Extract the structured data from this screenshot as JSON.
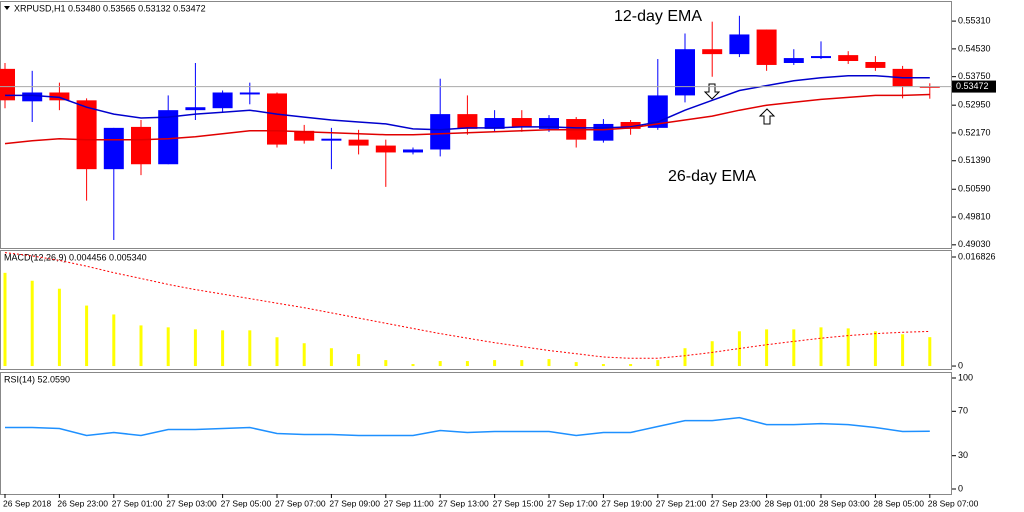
{
  "chart_data": [
    {
      "type": "candlestick",
      "title": "XRPUSD,H1  0.53480 0.53565 0.53132 0.53472",
      "categories": [
        "26 Sep 2018",
        null,
        "26 Sep 23:00",
        null,
        "27 Sep 01:00",
        null,
        "27 Sep 03:00",
        null,
        "27 Sep 05:00",
        null,
        "27 Sep 07:00",
        null,
        "27 Sep 09:00",
        null,
        "27 Sep 11:00",
        null,
        "27 Sep 13:00",
        null,
        "27 Sep 15:00",
        null,
        "27 Sep 17:00",
        null,
        "27 Sep 19:00",
        null,
        "27 Sep 21:00",
        null,
        "27 Sep 23:00",
        null,
        "28 Sep 01:00",
        null,
        "28 Sep 03:00",
        null,
        "28 Sep 05:00",
        null,
        "28 Sep 07:00"
      ],
      "open": [
        0.53969,
        0.53058,
        0.53306,
        0.53086,
        0.51154,
        0.5234,
        0.51292,
        0.5281,
        0.52865,
        0.53251,
        0.53279,
        0.5223,
        0.51954,
        0.51982,
        0.51816,
        0.51623,
        0.51706,
        0.52699,
        0.52285,
        0.52589,
        0.52285,
        0.52561,
        0.51954,
        0.52478,
        0.52313,
        0.53224,
        0.54521,
        0.54383,
        0.55073,
        0.54134,
        0.54272,
        0.54355,
        0.54162,
        0.53969,
        0.5348
      ],
      "high": [
        0.54134,
        0.53914,
        0.53582,
        0.53141,
        0.52313,
        0.52534,
        0.53224,
        0.54134,
        0.53362,
        0.53582,
        0.53306,
        0.52396,
        0.52313,
        0.52258,
        0.51982,
        0.51761,
        0.53693,
        0.53224,
        0.5281,
        0.5281,
        0.52672,
        0.52616,
        0.52561,
        0.52534,
        0.54245,
        0.54962,
        0.55294,
        0.55459,
        0.55073,
        0.54521,
        0.54742,
        0.54466,
        0.54328,
        0.54052,
        0.53565
      ],
      "low": [
        0.52865,
        0.52478,
        0.5281,
        0.5027,
        0.49166,
        0.50988,
        0.51292,
        0.52534,
        0.52754,
        0.52975,
        0.51761,
        0.51871,
        0.51154,
        0.51568,
        0.50657,
        0.51568,
        0.51512,
        0.5212,
        0.52202,
        0.52202,
        0.52202,
        0.51761,
        0.51899,
        0.5212,
        0.52258,
        0.5303,
        0.53748,
        0.543,
        0.53914,
        0.54079,
        0.54245,
        0.54107,
        0.53914,
        0.53141,
        0.53132
      ],
      "close": [
        0.53086,
        0.53306,
        0.53086,
        0.51154,
        0.52313,
        0.51292,
        0.5281,
        0.52892,
        0.53306,
        0.53306,
        0.51844,
        0.51954,
        0.52009,
        0.51816,
        0.51623,
        0.51706,
        0.52699,
        0.52285,
        0.52589,
        0.5234,
        0.52589,
        0.51982,
        0.52423,
        0.52285,
        0.53224,
        0.54521,
        0.54383,
        0.54935,
        0.54079,
        0.54272,
        0.54328,
        0.5419,
        0.53996,
        0.5348,
        0.53472
      ],
      "up_color": "#0000ff",
      "down_color": "#ff0000",
      "series": [
        {
          "name": "12-day EMA",
          "color": "#0000cd",
          "values": [
            0.53224,
            0.53224,
            0.53168,
            0.52892,
            0.52699,
            0.52589,
            0.52616,
            0.52699,
            0.52754,
            0.5281,
            0.52699,
            0.52616,
            0.52534,
            0.52478,
            0.52423,
            0.52285,
            0.52258,
            0.52313,
            0.52313,
            0.5234,
            0.5234,
            0.52313,
            0.52313,
            0.5234,
            0.52478,
            0.5281,
            0.53086,
            0.53362,
            0.535,
            0.53638,
            0.5372,
            0.53776,
            0.53776,
            0.5372,
            0.5372
          ]
        },
        {
          "name": "26-day EMA",
          "color": "#e00000",
          "values": [
            0.51871,
            0.51954,
            0.52009,
            0.51982,
            0.51982,
            0.51982,
            0.52009,
            0.52064,
            0.52147,
            0.5223,
            0.5223,
            0.52202,
            0.52175,
            0.52147,
            0.5212,
            0.5212,
            0.52147,
            0.52175,
            0.52202,
            0.5223,
            0.52258,
            0.52258,
            0.52258,
            0.52313,
            0.52423,
            0.52534,
            0.52644,
            0.5281,
            0.52948,
            0.5303,
            0.53113,
            0.53168,
            0.53224,
            0.53224,
            0.53251
          ]
        }
      ],
      "last_price": 0.53472,
      "ylim": [
        0.48941,
        0.55846
      ],
      "yticks": [
        {
          "value": 0.5531,
          "label": "0.55310"
        },
        {
          "value": 0.5453,
          "label": "0.54530"
        },
        {
          "value": 0.5375,
          "label": "0.53750"
        },
        {
          "value": 0.5295,
          "label": "0.52950"
        },
        {
          "value": 0.5217,
          "label": "0.52170"
        },
        {
          "value": 0.5139,
          "label": "0.51390"
        },
        {
          "value": 0.5059,
          "label": "0.50590"
        },
        {
          "value": 0.4981,
          "label": "0.49810"
        },
        {
          "value": 0.4903,
          "label": "0.49030"
        }
      ]
    },
    {
      "type": "bar",
      "title": "MACD(12,26,9) 0.004456 0.005340",
      "series": [
        {
          "type": "bar",
          "color": "#ffff00",
          "values": [
            0.01438,
            0.01316,
            0.01193,
            0.00933,
            0.00796,
            0.00627,
            0.00597,
            0.00566,
            0.00551,
            0.00551,
            0.00444,
            0.00352,
            0.00275,
            0.00184,
            0.00092,
            0.00031,
            0.00077,
            0.00077,
            0.00092,
            0.00092,
            0.00107,
            0.00061,
            0.00031,
            0.00031,
            0.00092,
            0.00275,
            0.00383,
            0.00536,
            0.00566,
            0.00566,
            0.00597,
            0.00581,
            0.00536,
            0.0049,
            0.004456
          ]
        },
        {
          "type": "line",
          "color": "#ff0000",
          "dash": true,
          "values": [
            0.0175,
            0.017,
            0.0163,
            0.0154,
            0.0144,
            0.0135,
            0.0126,
            0.0118,
            0.0111,
            0.0104,
            0.0097,
            0.009,
            0.0082,
            0.0074,
            0.0066,
            0.0058,
            0.005,
            0.0043,
            0.0036,
            0.003,
            0.0024,
            0.0019,
            0.0014,
            0.0012,
            0.0012,
            0.0016,
            0.0021,
            0.0027,
            0.0033,
            0.0038,
            0.0043,
            0.0047,
            0.005,
            0.0052,
            0.00534
          ]
        }
      ],
      "ylim": [
        -0.00061,
        0.01775
      ],
      "yticks": [
        0,
        0.016826
      ]
    },
    {
      "type": "line",
      "title": "RSI(14) 52.0590",
      "series": [
        {
          "color": "#1e90ff",
          "values": [
            55.4,
            55.4,
            54.5,
            48.2,
            50.9,
            48.2,
            53.6,
            53.6,
            54.5,
            55.4,
            50.0,
            49.1,
            49.1,
            48.2,
            48.2,
            48.2,
            52.7,
            50.9,
            51.8,
            51.8,
            51.8,
            48.2,
            50.9,
            50.9,
            56.3,
            61.6,
            61.6,
            64.3,
            58.0,
            58.0,
            58.9,
            58.0,
            55.4,
            51.8,
            52.059
          ]
        }
      ],
      "ylim": [
        -4.5,
        104.5
      ],
      "yticks": [
        0,
        30,
        70,
        100
      ]
    }
  ]
}
